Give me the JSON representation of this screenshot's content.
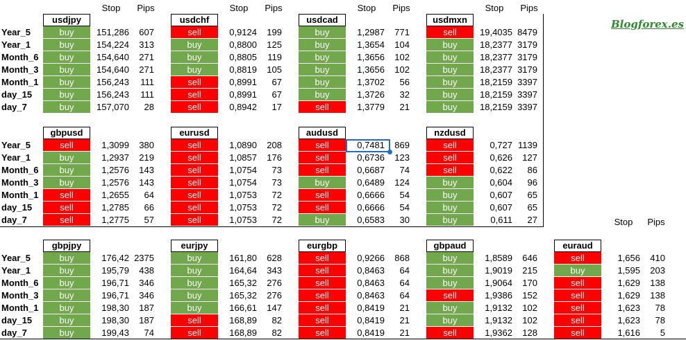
{
  "brand": "Blogforex.es",
  "col_stop": "Stop",
  "col_pips": "Pips",
  "row_labels": [
    "Year_5",
    "Year_1",
    "Month_6",
    "Month_3",
    "Month_1",
    "day_15",
    "day_7"
  ],
  "colors": {
    "buy": "#70a84b",
    "sell": "#ff0000",
    "selection": "#1a6fd1"
  },
  "blocks": [
    {
      "pairs": [
        {
          "name": "usdjpy",
          "rows": [
            [
              "buy",
              "151,286",
              "607"
            ],
            [
              "buy",
              "154,224",
              "313"
            ],
            [
              "buy",
              "154,640",
              "271"
            ],
            [
              "buy",
              "154,640",
              "271"
            ],
            [
              "buy",
              "156,243",
              "111"
            ],
            [
              "buy",
              "156,243",
              "111"
            ],
            [
              "buy",
              "157,070",
              "28"
            ]
          ]
        },
        {
          "name": "usdchf",
          "rows": [
            [
              "sell",
              "0,9124",
              "199"
            ],
            [
              "buy",
              "0,8800",
              "125"
            ],
            [
              "buy",
              "0,8805",
              "119"
            ],
            [
              "buy",
              "0,8819",
              "105"
            ],
            [
              "sell",
              "0,8991",
              "67"
            ],
            [
              "sell",
              "0,8991",
              "67"
            ],
            [
              "sell",
              "0,8942",
              "17"
            ]
          ]
        },
        {
          "name": "usdcad",
          "rows": [
            [
              "buy",
              "1,2987",
              "771"
            ],
            [
              "buy",
              "1,3654",
              "104"
            ],
            [
              "buy",
              "1,3656",
              "102"
            ],
            [
              "buy",
              "1,3656",
              "102"
            ],
            [
              "buy",
              "1,3702",
              "56"
            ],
            [
              "buy",
              "1,3726",
              "32"
            ],
            [
              "sell",
              "1,3779",
              "21"
            ]
          ]
        },
        {
          "name": "usdmxn",
          "rows": [
            [
              "sell",
              "19,4035",
              "8479"
            ],
            [
              "buy",
              "18,2377",
              "3179"
            ],
            [
              "buy",
              "18,2377",
              "3179"
            ],
            [
              "buy",
              "18,2377",
              "3179"
            ],
            [
              "buy",
              "18,2159",
              "3397"
            ],
            [
              "buy",
              "18,2159",
              "3397"
            ],
            [
              "buy",
              "18,2159",
              "3397"
            ]
          ]
        }
      ]
    },
    {
      "pairs": [
        {
          "name": "gbpusd",
          "rows": [
            [
              "sell",
              "1,3099",
              "380"
            ],
            [
              "buy",
              "1,2937",
              "219"
            ],
            [
              "buy",
              "1,2576",
              "143"
            ],
            [
              "buy",
              "1,2576",
              "143"
            ],
            [
              "sell",
              "1,2655",
              "64"
            ],
            [
              "sell",
              "1,2785",
              "66"
            ],
            [
              "sell",
              "1,2775",
              "57"
            ]
          ]
        },
        {
          "name": "eurusd",
          "rows": [
            [
              "sell",
              "1,0890",
              "208"
            ],
            [
              "sell",
              "1,0857",
              "176"
            ],
            [
              "sell",
              "1,0754",
              "73"
            ],
            [
              "sell",
              "1,0754",
              "73"
            ],
            [
              "sell",
              "1,0753",
              "72"
            ],
            [
              "sell",
              "1,0753",
              "72"
            ],
            [
              "sell",
              "1,0753",
              "72"
            ]
          ]
        },
        {
          "name": "audusd",
          "rows": [
            [
              "sell",
              "0,7481",
              "869"
            ],
            [
              "sell",
              "0,6736",
              "123"
            ],
            [
              "sell",
              "0,6687",
              "74"
            ],
            [
              "buy",
              "0,6489",
              "124"
            ],
            [
              "sell",
              "0,6666",
              "54"
            ],
            [
              "sell",
              "0,6666",
              "54"
            ],
            [
              "buy",
              "0,6583",
              "30"
            ]
          ]
        },
        {
          "name": "nzdusd",
          "rows": [
            [
              "sell",
              "0,727",
              "1139"
            ],
            [
              "sell",
              "0,626",
              "127"
            ],
            [
              "sell",
              "0,622",
              "86"
            ],
            [
              "buy",
              "0,604",
              "96"
            ],
            [
              "buy",
              "0,607",
              "65"
            ],
            [
              "buy",
              "0,607",
              "65"
            ],
            [
              "buy",
              "0,611",
              "27"
            ]
          ]
        }
      ]
    },
    {
      "pairs": [
        {
          "name": "gbpjpy",
          "rows": [
            [
              "buy",
              "176,42",
              "2375"
            ],
            [
              "buy",
              "195,79",
              "438"
            ],
            [
              "buy",
              "196,71",
              "346"
            ],
            [
              "buy",
              "196,71",
              "346"
            ],
            [
              "buy",
              "198,30",
              "187"
            ],
            [
              "buy",
              "198,30",
              "187"
            ],
            [
              "buy",
              "199,43",
              "74"
            ]
          ]
        },
        {
          "name": "eurjpy",
          "rows": [
            [
              "buy",
              "161,80",
              "628"
            ],
            [
              "buy",
              "164,64",
              "343"
            ],
            [
              "buy",
              "165,32",
              "276"
            ],
            [
              "buy",
              "165,32",
              "276"
            ],
            [
              "buy",
              "166,61",
              "147"
            ],
            [
              "sell",
              "168,89",
              "82"
            ],
            [
              "sell",
              "168,89",
              "82"
            ]
          ]
        },
        {
          "name": "eurgbp",
          "rows": [
            [
              "sell",
              "0,9266",
              "868"
            ],
            [
              "sell",
              "0,8463",
              "64"
            ],
            [
              "sell",
              "0,8463",
              "64"
            ],
            [
              "sell",
              "0,8463",
              "64"
            ],
            [
              "sell",
              "0,8419",
              "21"
            ],
            [
              "sell",
              "0,8419",
              "21"
            ],
            [
              "sell",
              "0,8419",
              "21"
            ]
          ]
        },
        {
          "name": "gbpaud",
          "rows": [
            [
              "buy",
              "1,8589",
              "646"
            ],
            [
              "buy",
              "1,9019",
              "215"
            ],
            [
              "buy",
              "1,9064",
              "170"
            ],
            [
              "sell",
              "1,9386",
              "152"
            ],
            [
              "buy",
              "1,9132",
              "102"
            ],
            [
              "buy",
              "1,9132",
              "102"
            ],
            [
              "sell",
              "1,9362",
              "128"
            ]
          ]
        },
        {
          "name": "euraud",
          "rows": [
            [
              "sell",
              "1,656",
              "410"
            ],
            [
              "buy",
              "1,595",
              "203"
            ],
            [
              "sell",
              "1,629",
              "138"
            ],
            [
              "sell",
              "1,629",
              "138"
            ],
            [
              "sell",
              "1,623",
              "78"
            ],
            [
              "sell",
              "1,623",
              "78"
            ],
            [
              "sell",
              "1,616",
              "5"
            ]
          ]
        }
      ]
    }
  ]
}
